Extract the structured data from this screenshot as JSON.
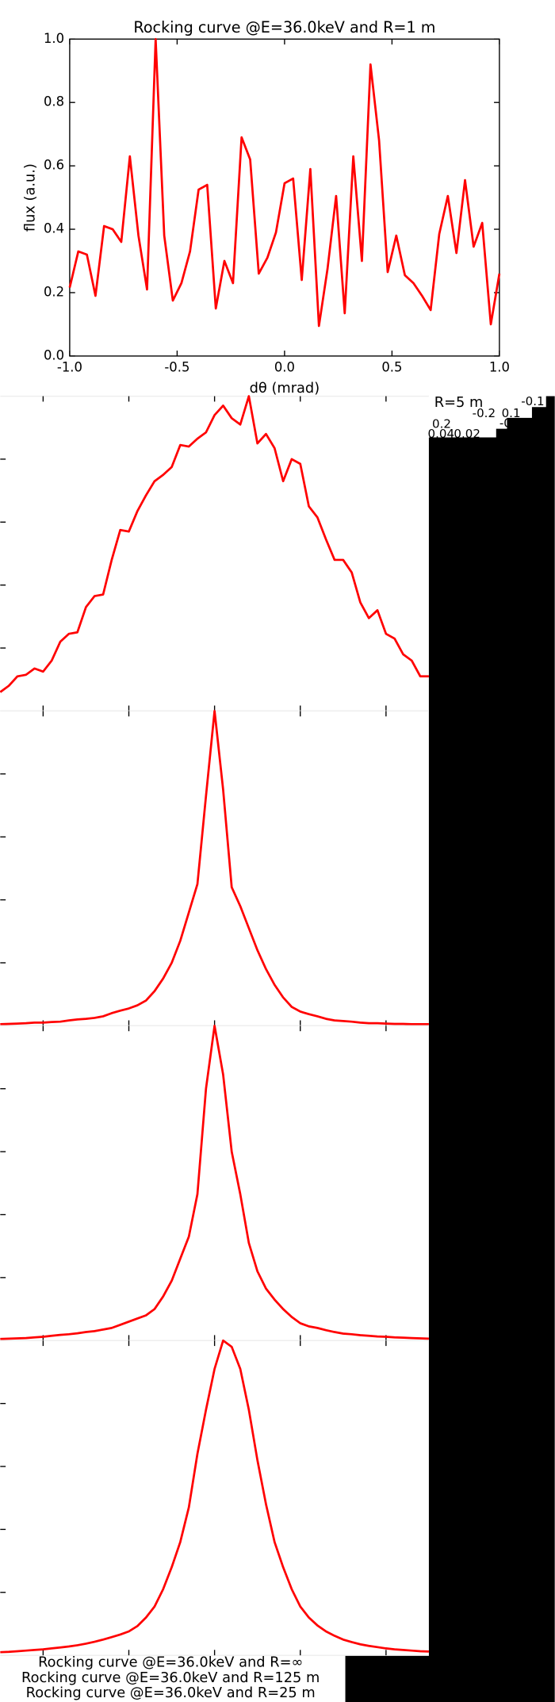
{
  "chart_data": [
    {
      "type": "line",
      "title": "Rocking curve @E=36.0keV and R=1 m",
      "xlabel": "dθ (mrad)",
      "ylabel": "flux (a.u.)",
      "x": [
        -1,
        -0.96,
        -0.92,
        -0.88,
        -0.84,
        -0.8,
        -0.76,
        -0.72,
        -0.68,
        -0.64,
        -0.6,
        -0.56,
        -0.52,
        -0.48,
        -0.44,
        -0.4,
        -0.36,
        -0.32,
        -0.28,
        -0.24,
        -0.2,
        -0.16,
        -0.12,
        -0.08,
        -0.04,
        0,
        0.04,
        0.08,
        0.12,
        0.16,
        0.2,
        0.24,
        0.28,
        0.32,
        0.36,
        0.4,
        0.44,
        0.48,
        0.52,
        0.56,
        0.6,
        0.64,
        0.68,
        0.72,
        0.76,
        0.8,
        0.84,
        0.88,
        0.92,
        0.96,
        1
      ],
      "series": [
        {
          "color": "#ff0000",
          "values": [
            0.216,
            0.33,
            0.32,
            0.19,
            0.41,
            0.4,
            0.36,
            0.63,
            0.38,
            0.21,
            1.0,
            0.38,
            0.175,
            0.23,
            0.33,
            0.525,
            0.54,
            0.15,
            0.3,
            0.23,
            0.69,
            0.62,
            0.26,
            0.31,
            0.39,
            0.545,
            0.56,
            0.24,
            0.59,
            0.095,
            0.275,
            0.505,
            0.135,
            0.63,
            0.3,
            0.92,
            0.68,
            0.265,
            0.38,
            0.255,
            0.23,
            0.19,
            0.145,
            0.385,
            0.505,
            0.325,
            0.555,
            0.345,
            0.42,
            0.1,
            0.26
          ]
        }
      ],
      "xlim": [
        -1,
        1
      ],
      "ylim": [
        0,
        1
      ],
      "xticks": [
        {
          "value": -1,
          "label": "-1.0"
        },
        -0.5,
        {
          "value": 0,
          "label": "0.0"
        },
        0.5,
        {
          "value": 1,
          "label": "1.0"
        }
      ],
      "yticks": [
        {
          "value": 0,
          "label": "0.0"
        },
        0.2,
        0.4,
        0.6,
        0.8,
        {
          "value": 1,
          "label": "1.0"
        }
      ]
    },
    {
      "type": "line",
      "title": "R=5 m",
      "x": [
        -0.25,
        -0.24,
        -0.23,
        -0.22,
        -0.21,
        -0.2,
        -0.19,
        -0.18,
        -0.17,
        -0.16,
        -0.15,
        -0.14,
        -0.13,
        -0.12,
        -0.11,
        -0.1,
        -0.09,
        -0.08,
        -0.07,
        -0.06,
        -0.05,
        -0.04,
        -0.03,
        -0.02,
        -0.01,
        0,
        0.01,
        0.02,
        0.03,
        0.04,
        0.05,
        0.06,
        0.07,
        0.08,
        0.09,
        0.1,
        0.11,
        0.12,
        0.13,
        0.14,
        0.15,
        0.16,
        0.17,
        0.18,
        0.19,
        0.2,
        0.21,
        0.22,
        0.23,
        0.24,
        0.25
      ],
      "series": [
        {
          "color": "#ff0000",
          "values": [
            0.06,
            0.08,
            0.11,
            0.115,
            0.135,
            0.125,
            0.16,
            0.22,
            0.245,
            0.25,
            0.33,
            0.365,
            0.37,
            0.48,
            0.575,
            0.57,
            0.635,
            0.685,
            0.73,
            0.75,
            0.775,
            0.845,
            0.84,
            0.865,
            0.885,
            0.94,
            0.97,
            0.93,
            0.91,
            1.0,
            0.85,
            0.88,
            0.835,
            0.73,
            0.8,
            0.785,
            0.65,
            0.615,
            0.545,
            0.48,
            0.48,
            0.44,
            0.345,
            0.295,
            0.32,
            0.245,
            0.23,
            0.18,
            0.16,
            0.11,
            0.11
          ]
        }
      ],
      "xlim": [
        -0.25,
        0.25
      ],
      "ylim": [
        0,
        1
      ],
      "xticks": [
        -0.2,
        -0.1,
        0,
        0.1,
        0.2
      ],
      "yticks": [
        0.2,
        0.4,
        0.6,
        0.8
      ]
    },
    {
      "type": "line",
      "title": "Rocking curve @E=36.0keV and R=∞",
      "x": [
        -0.25,
        -0.24,
        -0.23,
        -0.22,
        -0.21,
        -0.2,
        -0.19,
        -0.18,
        -0.17,
        -0.16,
        -0.15,
        -0.14,
        -0.13,
        -0.12,
        -0.11,
        -0.1,
        -0.09,
        -0.08,
        -0.07,
        -0.06,
        -0.05,
        -0.04,
        -0.03,
        -0.02,
        -0.01,
        0,
        0.01,
        0.02,
        0.03,
        0.04,
        0.05,
        0.06,
        0.07,
        0.08,
        0.09,
        0.1,
        0.11,
        0.12,
        0.13,
        0.14,
        0.15,
        0.16,
        0.17,
        0.18,
        0.19,
        0.2,
        0.21,
        0.22,
        0.23,
        0.24,
        0.25
      ],
      "series": [
        {
          "color": "#ff0000",
          "values": [
            0.005,
            0.006,
            0.007,
            0.008,
            0.01,
            0.01,
            0.012,
            0.013,
            0.017,
            0.02,
            0.022,
            0.025,
            0.03,
            0.04,
            0.048,
            0.055,
            0.065,
            0.08,
            0.11,
            0.15,
            0.2,
            0.27,
            0.36,
            0.45,
            0.73,
            1.0,
            0.75,
            0.44,
            0.38,
            0.31,
            0.24,
            0.18,
            0.13,
            0.09,
            0.06,
            0.045,
            0.037,
            0.03,
            0.022,
            0.017,
            0.015,
            0.013,
            0.01,
            0.008,
            0.008,
            0.007,
            0.006,
            0.006,
            0.005,
            0.005,
            0.005
          ]
        }
      ],
      "xlim": [
        -0.25,
        0.25
      ],
      "ylim": [
        0,
        1
      ],
      "xticks": [
        -0.2,
        -0.1,
        0,
        0.1,
        0.2
      ],
      "yticks": [
        0.2,
        0.4,
        0.6,
        0.8
      ]
    },
    {
      "type": "line",
      "title": "Rocking curve @E=36.0keV and R=125 m",
      "x": [
        -0.25,
        -0.24,
        -0.23,
        -0.22,
        -0.21,
        -0.2,
        -0.19,
        -0.18,
        -0.17,
        -0.16,
        -0.15,
        -0.14,
        -0.13,
        -0.12,
        -0.11,
        -0.1,
        -0.09,
        -0.08,
        -0.07,
        -0.06,
        -0.05,
        -0.04,
        -0.03,
        -0.02,
        -0.01,
        0,
        0.01,
        0.02,
        0.03,
        0.04,
        0.05,
        0.06,
        0.07,
        0.08,
        0.09,
        0.1,
        0.11,
        0.12,
        0.13,
        0.14,
        0.15,
        0.16,
        0.17,
        0.18,
        0.19,
        0.2,
        0.21,
        0.22,
        0.23,
        0.24,
        0.25
      ],
      "series": [
        {
          "color": "#ff0000",
          "values": [
            0.005,
            0.006,
            0.007,
            0.008,
            0.01,
            0.012,
            0.015,
            0.018,
            0.02,
            0.023,
            0.027,
            0.03,
            0.035,
            0.04,
            0.05,
            0.06,
            0.07,
            0.08,
            0.1,
            0.14,
            0.19,
            0.26,
            0.33,
            0.465,
            0.8,
            1.0,
            0.845,
            0.6,
            0.465,
            0.31,
            0.22,
            0.165,
            0.13,
            0.1,
            0.075,
            0.055,
            0.045,
            0.04,
            0.033,
            0.027,
            0.022,
            0.02,
            0.017,
            0.015,
            0.013,
            0.012,
            0.01,
            0.009,
            0.008,
            0.007,
            0.006
          ]
        }
      ],
      "xlim": [
        -0.25,
        0.25
      ],
      "ylim": [
        0,
        1
      ],
      "xticks": [
        -0.2,
        -0.1,
        0,
        0.1,
        0.2
      ],
      "yticks": [
        0.2,
        0.4,
        0.6,
        0.8
      ]
    },
    {
      "type": "line",
      "title": "Rocking curve @E=36.0keV and R=25 m",
      "x": [
        -0.25,
        -0.24,
        -0.23,
        -0.22,
        -0.21,
        -0.2,
        -0.19,
        -0.18,
        -0.17,
        -0.16,
        -0.15,
        -0.14,
        -0.13,
        -0.12,
        -0.11,
        -0.1,
        -0.09,
        -0.08,
        -0.07,
        -0.06,
        -0.05,
        -0.04,
        -0.03,
        -0.02,
        -0.01,
        0,
        0.01,
        0.02,
        0.03,
        0.04,
        0.05,
        0.06,
        0.07,
        0.08,
        0.09,
        0.1,
        0.11,
        0.12,
        0.13,
        0.14,
        0.15,
        0.16,
        0.17,
        0.18,
        0.19,
        0.2,
        0.21,
        0.22,
        0.23,
        0.24,
        0.25
      ],
      "series": [
        {
          "color": "#ff0000",
          "values": [
            0.01,
            0.011,
            0.013,
            0.015,
            0.017,
            0.019,
            0.022,
            0.025,
            0.028,
            0.032,
            0.037,
            0.043,
            0.05,
            0.058,
            0.066,
            0.076,
            0.093,
            0.12,
            0.155,
            0.21,
            0.28,
            0.36,
            0.47,
            0.64,
            0.78,
            0.91,
            1.0,
            0.98,
            0.91,
            0.78,
            0.62,
            0.48,
            0.36,
            0.28,
            0.21,
            0.155,
            0.12,
            0.095,
            0.076,
            0.062,
            0.05,
            0.042,
            0.035,
            0.03,
            0.026,
            0.022,
            0.019,
            0.017,
            0.015,
            0.013,
            0.012
          ]
        }
      ],
      "xlim": [
        -0.25,
        0.25
      ],
      "ylim": [
        0,
        1
      ],
      "xticks": [
        -0.2,
        -0.1,
        0,
        0.1,
        0.2
      ],
      "yticks": [
        0.2,
        0.4,
        0.6,
        0.8
      ]
    }
  ],
  "overlay_labels": [
    "-0.1",
    "-0.2",
    "0.1",
    "0.2",
    "-0.02",
    "0.04",
    "0.02",
    "-0.04",
    "0.00"
  ]
}
